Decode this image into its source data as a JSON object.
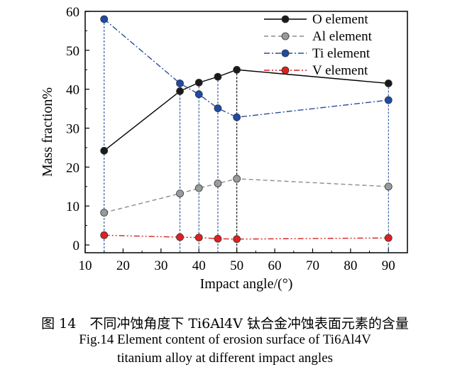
{
  "chart_data": {
    "type": "line",
    "title": "",
    "xlabel": "Impact angle/(°)",
    "ylabel": "Mass fraction%",
    "xlim": [
      10,
      95
    ],
    "ylim": [
      -2,
      60
    ],
    "xticks": [
      10,
      20,
      30,
      40,
      50,
      60,
      70,
      80,
      90
    ],
    "yticks": [
      0,
      10,
      20,
      30,
      40,
      50,
      60
    ],
    "x": [
      15,
      35,
      40,
      45,
      50,
      90
    ],
    "grid": false,
    "legend_position": "top-right",
    "series": [
      {
        "name": "O element",
        "values": [
          24.2,
          39.5,
          41.7,
          43.2,
          45.0,
          41.5
        ],
        "color": "#000000",
        "dash": "solid",
        "marker_fill": "#1a1a1a"
      },
      {
        "name": "Al element",
        "values": [
          8.3,
          13.2,
          14.6,
          15.8,
          17.0,
          15.0
        ],
        "color": "#8c8c8c",
        "dash": "dashed",
        "marker_fill": "#9a9a9a"
      },
      {
        "name": "Ti element",
        "values": [
          58.0,
          41.5,
          38.7,
          35.1,
          32.8,
          37.2
        ],
        "color": "#2a4f9c",
        "dash": "dashdot",
        "marker_fill": "#1f4aa8"
      },
      {
        "name": "V element",
        "values": [
          2.5,
          2.0,
          1.9,
          1.6,
          1.5,
          1.8
        ],
        "color": "#d42020",
        "dash": "dashdotdot",
        "marker_fill": "#e02020"
      }
    ],
    "drop_lines": [
      {
        "x": 15,
        "from": "Ti element",
        "color": "#2a4f9c"
      },
      {
        "x": 35,
        "from": "Ti element",
        "color": "#2a4f9c"
      },
      {
        "x": 40,
        "from": "O element",
        "color": "#2a4f9c"
      },
      {
        "x": 45,
        "from": "O element",
        "color": "#2a4f9c"
      },
      {
        "x": 50,
        "from": "O element",
        "color": "#000000"
      },
      {
        "x": 90,
        "from": "O element",
        "color": "#2a4f9c"
      }
    ]
  },
  "caption": {
    "zh": "图 14　不同冲蚀角度下 Ti6Al4V 钛合金冲蚀表面元素的含量",
    "en_line1": "Fig.14 Element content of erosion surface of Ti6Al4V",
    "en_line2": "titanium alloy at different impact angles"
  }
}
